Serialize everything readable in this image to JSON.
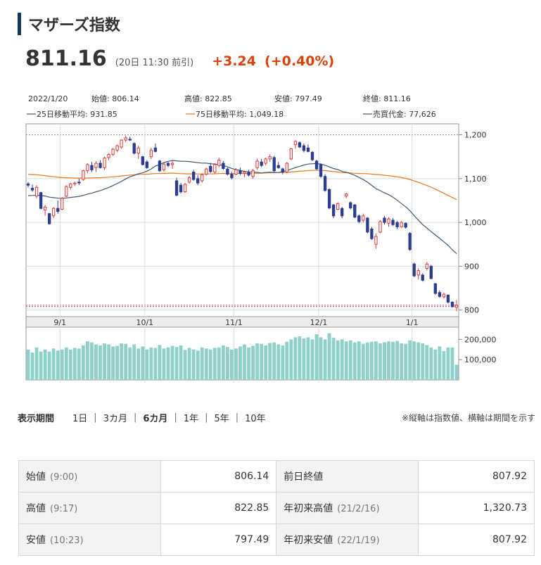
{
  "header": {
    "title": "マザーズ指数",
    "price": "811.16",
    "time": "(20日 11:30 前引)",
    "change": "+3.24",
    "change_pct": "(+0.40%)"
  },
  "info": {
    "date": "2022/1/20",
    "open": "始値: 806.14",
    "high": "高値: 822.85",
    "low": "安値: 797.49",
    "close": "終値: 811.16",
    "ma25": "25日移動平均: 931.85",
    "ma75": "75日移動平均: 1,049.18",
    "volume": "売買代金: 77,626"
  },
  "chart_data": {
    "type": "candlestick",
    "x_labels": [
      "9/1",
      "10/1",
      "11/1",
      "12/1",
      "1/1"
    ],
    "y_ticks": [
      "1,200",
      "1,100",
      "1,000",
      "900",
      "800"
    ],
    "ylim": [
      785,
      1225
    ],
    "volume_ticks": [
      "200,000",
      "100,000"
    ],
    "volume_ylim": [
      0,
      260000
    ],
    "up_color": "#e03c3c",
    "down_color": "#2d3c8f",
    "ma25_color": "#3e5a78",
    "ma75_color": "#ea7a22",
    "volume_color": "#8fd0cb",
    "reference_lines": [
      1200,
      811.16,
      807.92
    ],
    "candles": [
      {
        "d": "8/20",
        "o": 1088,
        "h": 1092,
        "l": 1080,
        "c": 1085
      },
      {
        "d": "8/23",
        "o": 1078,
        "h": 1086,
        "l": 1070,
        "c": 1074
      },
      {
        "d": "8/24",
        "o": 1060,
        "h": 1085,
        "l": 1055,
        "c": 1080
      },
      {
        "d": "8/25",
        "o": 1068,
        "h": 1070,
        "l": 1030,
        "c": 1032
      },
      {
        "d": "8/26",
        "o": 1028,
        "h": 1040,
        "l": 1015,
        "c": 1035
      },
      {
        "d": "8/27",
        "o": 1020,
        "h": 1022,
        "l": 995,
        "c": 997
      },
      {
        "d": "8/30",
        "o": 1015,
        "h": 1035,
        "l": 1010,
        "c": 1032
      },
      {
        "d": "8/31",
        "o": 1032,
        "h": 1050,
        "l": 1020,
        "c": 1025
      },
      {
        "d": "9/1",
        "o": 1030,
        "h": 1058,
        "l": 1028,
        "c": 1055
      },
      {
        "d": "9/2",
        "o": 1060,
        "h": 1085,
        "l": 1058,
        "c": 1082
      },
      {
        "d": "9/3",
        "o": 1080,
        "h": 1090,
        "l": 1075,
        "c": 1088
      },
      {
        "d": "9/6",
        "o": 1088,
        "h": 1093,
        "l": 1083,
        "c": 1090
      },
      {
        "d": "9/7",
        "o": 1092,
        "h": 1100,
        "l": 1085,
        "c": 1090
      },
      {
        "d": "9/8",
        "o": 1098,
        "h": 1120,
        "l": 1095,
        "c": 1118
      },
      {
        "d": "9/9",
        "o": 1118,
        "h": 1135,
        "l": 1112,
        "c": 1132
      },
      {
        "d": "9/10",
        "o": 1130,
        "h": 1138,
        "l": 1115,
        "c": 1120
      },
      {
        "d": "9/13",
        "o": 1125,
        "h": 1140,
        "l": 1115,
        "c": 1135
      },
      {
        "d": "9/14",
        "o": 1135,
        "h": 1142,
        "l": 1123,
        "c": 1125
      },
      {
        "d": "9/15",
        "o": 1125,
        "h": 1150,
        "l": 1120,
        "c": 1147
      },
      {
        "d": "9/16",
        "o": 1148,
        "h": 1158,
        "l": 1142,
        "c": 1155
      },
      {
        "d": "9/17",
        "o": 1155,
        "h": 1170,
        "l": 1152,
        "c": 1167
      },
      {
        "d": "9/21",
        "o": 1165,
        "h": 1178,
        "l": 1160,
        "c": 1175
      },
      {
        "d": "9/22",
        "o": 1172,
        "h": 1190,
        "l": 1168,
        "c": 1188
      },
      {
        "d": "9/24",
        "o": 1188,
        "h": 1198,
        "l": 1183,
        "c": 1193
      },
      {
        "d": "9/27",
        "o": 1190,
        "h": 1196,
        "l": 1186,
        "c": 1188
      },
      {
        "d": "9/28",
        "o": 1180,
        "h": 1183,
        "l": 1155,
        "c": 1158
      },
      {
        "d": "9/29",
        "o": 1158,
        "h": 1175,
        "l": 1145,
        "c": 1170
      },
      {
        "d": "9/30",
        "o": 1150,
        "h": 1152,
        "l": 1130,
        "c": 1132
      },
      {
        "d": "10/1",
        "o": 1138,
        "h": 1142,
        "l": 1122,
        "c": 1125
      },
      {
        "d": "10/4",
        "o": 1150,
        "h": 1170,
        "l": 1145,
        "c": 1165
      },
      {
        "d": "10/5",
        "o": 1170,
        "h": 1180,
        "l": 1160,
        "c": 1162
      },
      {
        "d": "10/6",
        "o": 1140,
        "h": 1143,
        "l": 1115,
        "c": 1118
      },
      {
        "d": "10/7",
        "o": 1120,
        "h": 1136,
        "l": 1116,
        "c": 1133
      },
      {
        "d": "10/8",
        "o": 1135,
        "h": 1138,
        "l": 1126,
        "c": 1130
      },
      {
        "d": "10/11",
        "o": 1132,
        "h": 1140,
        "l": 1122,
        "c": 1135
      },
      {
        "d": "10/12",
        "o": 1095,
        "h": 1102,
        "l": 1060,
        "c": 1062
      },
      {
        "d": "10/13",
        "o": 1085,
        "h": 1090,
        "l": 1066,
        "c": 1070
      },
      {
        "d": "10/14",
        "o": 1070,
        "h": 1090,
        "l": 1068,
        "c": 1087
      },
      {
        "d": "10/15",
        "o": 1092,
        "h": 1106,
        "l": 1088,
        "c": 1102
      },
      {
        "d": "10/18",
        "o": 1115,
        "h": 1120,
        "l": 1095,
        "c": 1098
      },
      {
        "d": "10/19",
        "o": 1100,
        "h": 1108,
        "l": 1085,
        "c": 1090
      },
      {
        "d": "10/20",
        "o": 1095,
        "h": 1112,
        "l": 1091,
        "c": 1109
      },
      {
        "d": "10/21",
        "o": 1110,
        "h": 1125,
        "l": 1107,
        "c": 1122
      },
      {
        "d": "10/22",
        "o": 1128,
        "h": 1136,
        "l": 1113,
        "c": 1116
      },
      {
        "d": "10/25",
        "o": 1115,
        "h": 1135,
        "l": 1112,
        "c": 1132
      },
      {
        "d": "10/26",
        "o": 1130,
        "h": 1148,
        "l": 1126,
        "c": 1142
      },
      {
        "d": "10/27",
        "o": 1135,
        "h": 1140,
        "l": 1120,
        "c": 1123
      },
      {
        "d": "10/28",
        "o": 1122,
        "h": 1125,
        "l": 1107,
        "c": 1110
      },
      {
        "d": "10/29",
        "o": 1110,
        "h": 1115,
        "l": 1098,
        "c": 1102
      },
      {
        "d": "11/1",
        "o": 1110,
        "h": 1124,
        "l": 1108,
        "c": 1120
      },
      {
        "d": "11/2",
        "o": 1118,
        "h": 1125,
        "l": 1108,
        "c": 1112
      },
      {
        "d": "11/4",
        "o": 1112,
        "h": 1118,
        "l": 1103,
        "c": 1115
      },
      {
        "d": "11/5",
        "o": 1114,
        "h": 1120,
        "l": 1105,
        "c": 1108
      },
      {
        "d": "11/8",
        "o": 1105,
        "h": 1122,
        "l": 1100,
        "c": 1118
      },
      {
        "d": "11/9",
        "o": 1125,
        "h": 1145,
        "l": 1120,
        "c": 1140
      },
      {
        "d": "11/10",
        "o": 1138,
        "h": 1145,
        "l": 1126,
        "c": 1130
      },
      {
        "d": "11/11",
        "o": 1135,
        "h": 1148,
        "l": 1130,
        "c": 1145
      },
      {
        "d": "11/12",
        "o": 1145,
        "h": 1155,
        "l": 1138,
        "c": 1150
      },
      {
        "d": "11/15",
        "o": 1148,
        "h": 1152,
        "l": 1115,
        "c": 1118
      },
      {
        "d": "11/16",
        "o": 1130,
        "h": 1138,
        "l": 1122,
        "c": 1125
      },
      {
        "d": "11/17",
        "o": 1122,
        "h": 1125,
        "l": 1110,
        "c": 1115
      },
      {
        "d": "11/18",
        "o": 1115,
        "h": 1138,
        "l": 1112,
        "c": 1135
      },
      {
        "d": "11/19",
        "o": 1145,
        "h": 1170,
        "l": 1142,
        "c": 1168
      },
      {
        "d": "11/22",
        "o": 1178,
        "h": 1188,
        "l": 1168,
        "c": 1185
      },
      {
        "d": "11/24",
        "o": 1182,
        "h": 1185,
        "l": 1170,
        "c": 1172
      },
      {
        "d": "11/25",
        "o": 1175,
        "h": 1180,
        "l": 1160,
        "c": 1164
      },
      {
        "d": "11/26",
        "o": 1170,
        "h": 1178,
        "l": 1160,
        "c": 1162
      },
      {
        "d": "11/29",
        "o": 1160,
        "h": 1163,
        "l": 1140,
        "c": 1143
      },
      {
        "d": "11/30",
        "o": 1140,
        "h": 1143,
        "l": 1120,
        "c": 1122
      },
      {
        "d": "12/1",
        "o": 1132,
        "h": 1135,
        "l": 1102,
        "c": 1105
      },
      {
        "d": "12/2",
        "o": 1105,
        "h": 1110,
        "l": 1070,
        "c": 1073
      },
      {
        "d": "12/3",
        "o": 1075,
        "h": 1078,
        "l": 1030,
        "c": 1033
      },
      {
        "d": "12/6",
        "o": 1040,
        "h": 1042,
        "l": 1010,
        "c": 1015
      },
      {
        "d": "12/7",
        "o": 1030,
        "h": 1046,
        "l": 1028,
        "c": 1043
      },
      {
        "d": "12/8",
        "o": 1032,
        "h": 1035,
        "l": 1010,
        "c": 1015
      },
      {
        "d": "12/9",
        "o": 1060,
        "h": 1068,
        "l": 1055,
        "c": 1065
      },
      {
        "d": "12/10",
        "o": 1045,
        "h": 1048,
        "l": 1030,
        "c": 1033
      },
      {
        "d": "12/13",
        "o": 1040,
        "h": 1042,
        "l": 1010,
        "c": 1012
      },
      {
        "d": "12/14",
        "o": 1015,
        "h": 1018,
        "l": 998,
        "c": 1002
      },
      {
        "d": "12/15",
        "o": 1005,
        "h": 1020,
        "l": 1000,
        "c": 1015
      },
      {
        "d": "12/16",
        "o": 1010,
        "h": 1012,
        "l": 975,
        "c": 978
      },
      {
        "d": "12/17",
        "o": 985,
        "h": 990,
        "l": 960,
        "c": 963
      },
      {
        "d": "12/20",
        "o": 950,
        "h": 975,
        "l": 940,
        "c": 968
      },
      {
        "d": "12/21",
        "o": 978,
        "h": 1005,
        "l": 975,
        "c": 1002
      },
      {
        "d": "12/22",
        "o": 1010,
        "h": 1015,
        "l": 995,
        "c": 1000
      },
      {
        "d": "12/23",
        "o": 998,
        "h": 1012,
        "l": 990,
        "c": 1008
      },
      {
        "d": "12/24",
        "o": 1005,
        "h": 1010,
        "l": 992,
        "c": 995
      },
      {
        "d": "12/27",
        "o": 1000,
        "h": 1003,
        "l": 985,
        "c": 990
      },
      {
        "d": "12/28",
        "o": 990,
        "h": 1003,
        "l": 988,
        "c": 1000
      },
      {
        "d": "12/29",
        "o": 998,
        "h": 1000,
        "l": 986,
        "c": 989
      },
      {
        "d": "12/30",
        "o": 975,
        "h": 978,
        "l": 935,
        "c": 938
      },
      {
        "d": "1/4",
        "o": 905,
        "h": 908,
        "l": 875,
        "c": 878
      },
      {
        "d": "1/5",
        "o": 880,
        "h": 895,
        "l": 870,
        "c": 890
      },
      {
        "d": "1/6",
        "o": 880,
        "h": 884,
        "l": 865,
        "c": 868
      },
      {
        "d": "1/7",
        "o": 895,
        "h": 910,
        "l": 890,
        "c": 905
      },
      {
        "d": "1/11",
        "o": 900,
        "h": 903,
        "l": 870,
        "c": 872
      },
      {
        "d": "1/12",
        "o": 860,
        "h": 862,
        "l": 835,
        "c": 838
      },
      {
        "d": "1/13",
        "o": 840,
        "h": 845,
        "l": 828,
        "c": 831
      },
      {
        "d": "1/14",
        "o": 830,
        "h": 840,
        "l": 826,
        "c": 836
      },
      {
        "d": "1/17",
        "o": 834,
        "h": 836,
        "l": 815,
        "c": 818
      },
      {
        "d": "1/18",
        "o": 818,
        "h": 820,
        "l": 805,
        "c": 808
      },
      {
        "d": "1/20",
        "o": 806.14,
        "h": 822.85,
        "l": 797.49,
        "c": 811.16
      }
    ],
    "volume": [
      150000,
      135000,
      160000,
      140000,
      150000,
      140000,
      155000,
      145000,
      150000,
      160000,
      150000,
      158000,
      155000,
      170000,
      190000,
      185000,
      175000,
      170000,
      180000,
      175000,
      165000,
      168000,
      180000,
      178000,
      160000,
      175000,
      155000,
      165000,
      150000,
      160000,
      158000,
      172000,
      155000,
      160000,
      168000,
      162000,
      170000,
      148000,
      158000,
      150000,
      145000,
      160000,
      155000,
      150000,
      158000,
      160000,
      170000,
      162000,
      150000,
      155000,
      165000,
      175000,
      160000,
      168000,
      180000,
      178000,
      170000,
      182000,
      185000,
      175000,
      170000,
      188000,
      200000,
      210000,
      215000,
      205000,
      210000,
      200000,
      225000,
      210000,
      200000,
      230000,
      208000,
      195000,
      200000,
      190000,
      195000,
      185000,
      190000,
      178000,
      185000,
      188000,
      190000,
      180000,
      186000,
      190000,
      188000,
      192000,
      180000,
      178000,
      195000,
      190000,
      185000,
      180000,
      172000,
      160000,
      150000,
      165000,
      142000,
      160000,
      160000,
      75000
    ]
  },
  "period": {
    "label": "表示期間",
    "options": [
      "1日",
      "3カ月",
      "6カ月",
      "1年",
      "5年",
      "10年"
    ],
    "active": "6カ月",
    "note": "※縦軸は指数値、横軸は期間を示す"
  },
  "stats": {
    "rows": [
      {
        "k1": "始値",
        "s1": "(9:00)",
        "v1": "806.14",
        "k2": "前日終値",
        "s2": "",
        "v2": "807.92"
      },
      {
        "k1": "高値",
        "s1": "(9:17)",
        "v1": "822.85",
        "k2": "年初来高値",
        "s2": "(21/2/16)",
        "v2": "1,320.73"
      },
      {
        "k1": "安値",
        "s1": "(10:23)",
        "v1": "797.49",
        "k2": "年初来安値",
        "s2": "(22/1/19)",
        "v2": "807.92"
      }
    ]
  }
}
